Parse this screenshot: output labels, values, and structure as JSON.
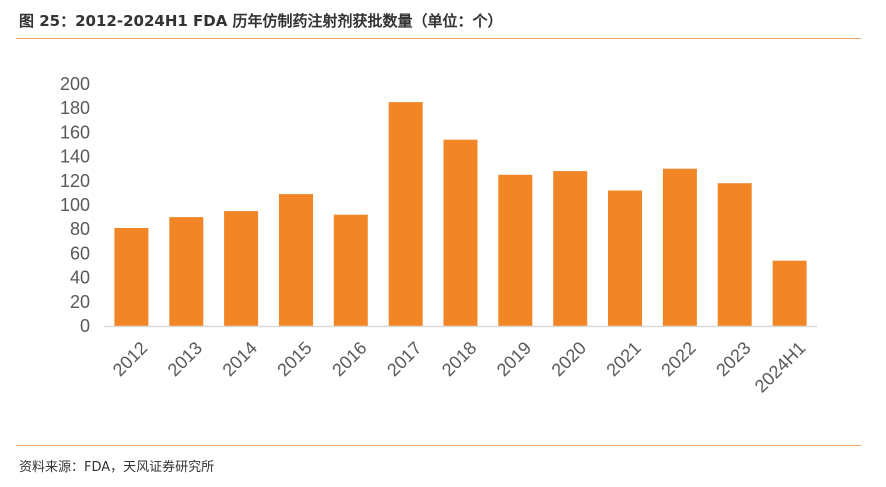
{
  "figure": {
    "title": "图 25：2012-2024H1 FDA 历年仿制药注射剂获批数量（单位：个）",
    "source": "资料来源：FDA，天风证券研究所"
  },
  "colors": {
    "bar": "#F28627",
    "rule": "#F0A561",
    "axis": "#D9D9D9",
    "text": "#595959"
  },
  "chart_data": {
    "type": "bar",
    "title": "2012-2024H1 FDA 历年仿制药注射剂获批数量（单位：个）",
    "xlabel": "",
    "ylabel": "",
    "categories": [
      "2012",
      "2013",
      "2014",
      "2015",
      "2016",
      "2017",
      "2018",
      "2019",
      "2020",
      "2021",
      "2022",
      "2023",
      "2024H1"
    ],
    "values": [
      81,
      90,
      95,
      109,
      92,
      185,
      154,
      125,
      128,
      112,
      130,
      118,
      54
    ],
    "ylim": [
      0,
      200
    ],
    "yticks": [
      0,
      20,
      40,
      60,
      80,
      100,
      120,
      140,
      160,
      180,
      200
    ],
    "grid": false,
    "legend": "none"
  }
}
